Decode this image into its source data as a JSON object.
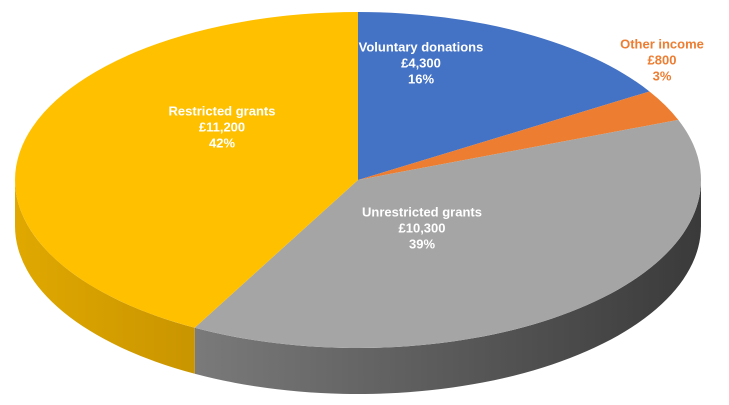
{
  "chart_data": {
    "type": "pie",
    "categories": [
      "Voluntary donations",
      "Other income",
      "Unrestricted grants",
      "Restricted grants"
    ],
    "values": [
      4300,
      800,
      10300,
      11200
    ],
    "value_labels": [
      "£4,300",
      "£800",
      "£10,300",
      "£11,200"
    ],
    "percent_labels": [
      "16%",
      "3%",
      "39%",
      "42%"
    ],
    "colors": [
      "#4472c4",
      "#ed7d31",
      "#a5a5a5",
      "#ffc000"
    ],
    "label_colors": [
      "#ffffff",
      "#ed7d31",
      "#ffffff",
      "#ffffff"
    ],
    "start_angle": 0,
    "direction": "clockwise"
  }
}
